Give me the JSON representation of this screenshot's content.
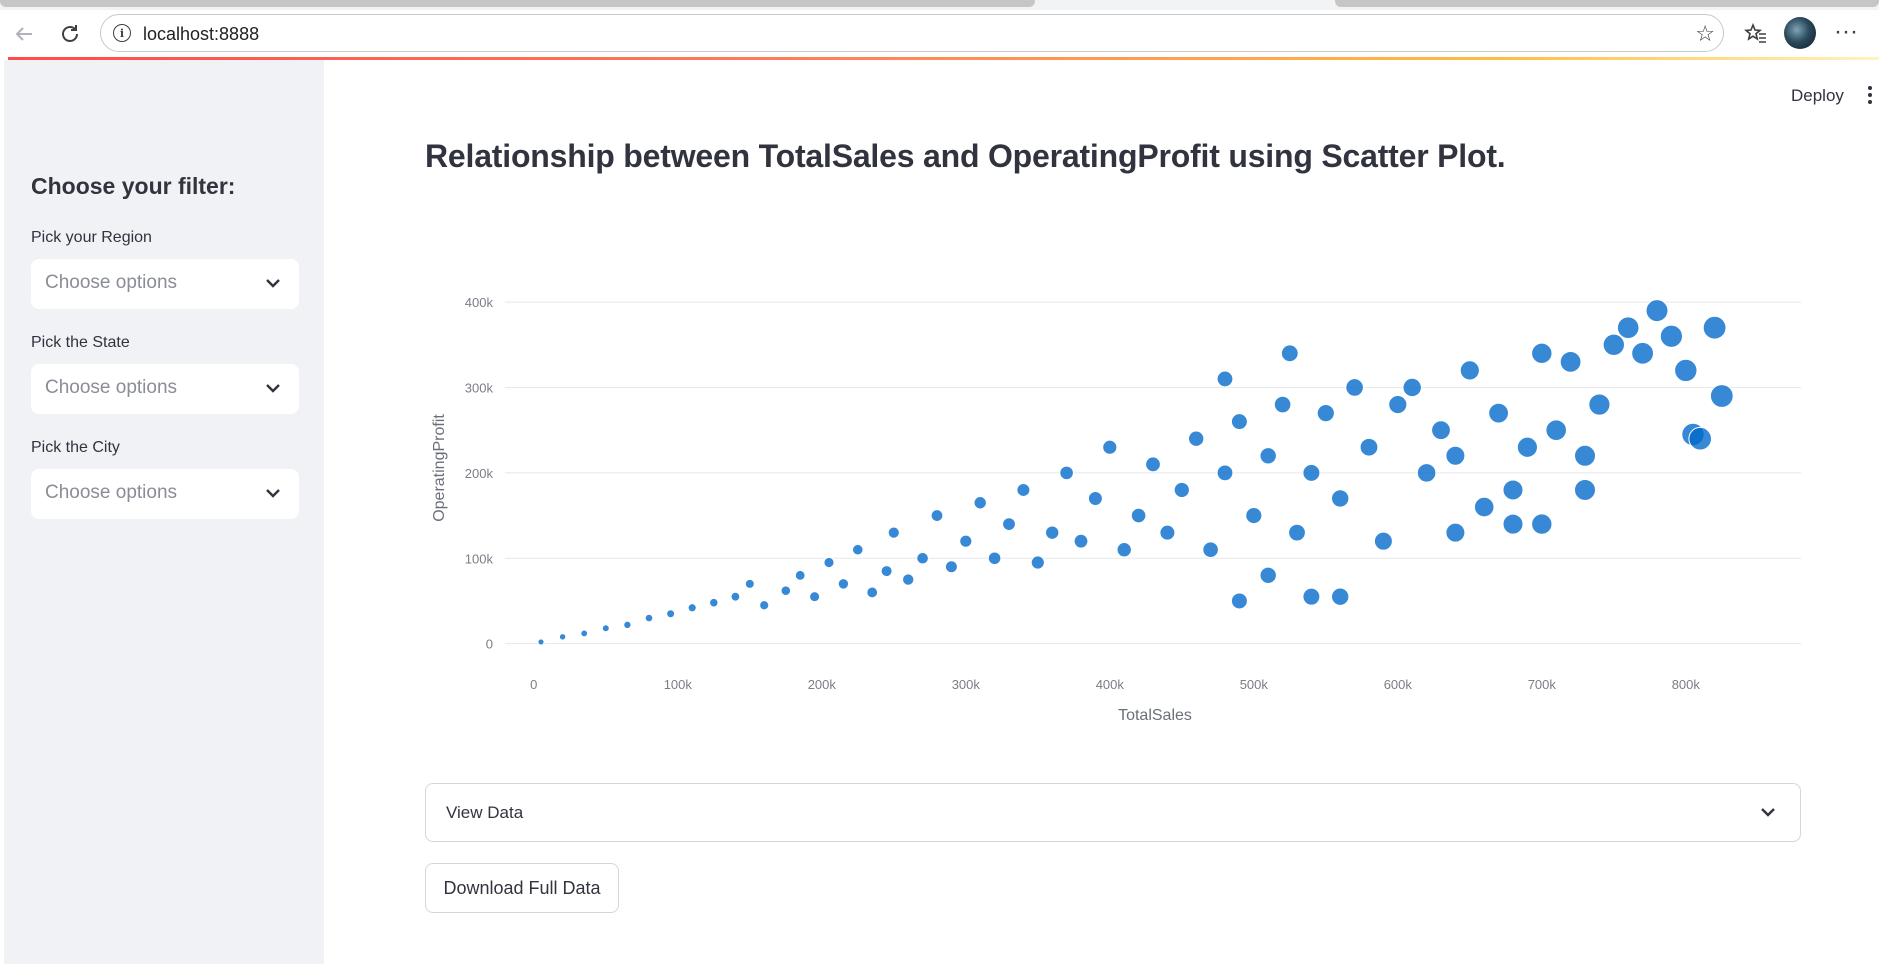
{
  "browser": {
    "url": "localhost:8888",
    "icons": [
      "back-icon",
      "reload-icon",
      "info-icon",
      "star-icon",
      "favorites-icon",
      "more-icon"
    ]
  },
  "header": {
    "deploy_label": "Deploy"
  },
  "sidebar": {
    "title": "Choose your filter:",
    "filters": [
      {
        "label": "Pick your Region",
        "placeholder": "Choose options"
      },
      {
        "label": "Pick the State",
        "placeholder": "Choose options"
      },
      {
        "label": "Pick the City",
        "placeholder": "Choose options"
      }
    ]
  },
  "main": {
    "title": "Relationship between TotalSales and OperatingProfit using Scatter Plot.",
    "expander_label": "View Data",
    "download_label": "Download Full Data"
  },
  "colors": {
    "point": "#0068c9",
    "accent": "#ff4b4b",
    "sidebar": "#f0f2f6"
  },
  "chart_data": {
    "type": "scatter",
    "xlabel": "TotalSales",
    "ylabel": "OperatingProfit",
    "xlim": [
      -20000,
      880000
    ],
    "ylim": [
      -25000,
      420000
    ],
    "xticks": [
      0,
      100000,
      200000,
      300000,
      400000,
      500000,
      600000,
      700000,
      800000
    ],
    "xtick_labels": [
      "0",
      "100k",
      "200k",
      "300k",
      "400k",
      "500k",
      "600k",
      "700k",
      "800k"
    ],
    "yticks": [
      0,
      100000,
      200000,
      300000,
      400000
    ],
    "ytick_labels": [
      "0",
      "100k",
      "200k",
      "300k",
      "400k"
    ],
    "grid": true,
    "legend": "none",
    "points": [
      [
        5000,
        2000
      ],
      [
        20000,
        8000
      ],
      [
        35000,
        12000
      ],
      [
        50000,
        18000
      ],
      [
        65000,
        22000
      ],
      [
        80000,
        30000
      ],
      [
        95000,
        35000
      ],
      [
        110000,
        42000
      ],
      [
        125000,
        48000
      ],
      [
        140000,
        55000
      ],
      [
        150000,
        70000
      ],
      [
        160000,
        45000
      ],
      [
        175000,
        62000
      ],
      [
        185000,
        80000
      ],
      [
        195000,
        55000
      ],
      [
        205000,
        95000
      ],
      [
        215000,
        70000
      ],
      [
        225000,
        110000
      ],
      [
        235000,
        60000
      ],
      [
        245000,
        85000
      ],
      [
        250000,
        130000
      ],
      [
        260000,
        75000
      ],
      [
        270000,
        100000
      ],
      [
        280000,
        150000
      ],
      [
        290000,
        90000
      ],
      [
        300000,
        120000
      ],
      [
        310000,
        165000
      ],
      [
        320000,
        100000
      ],
      [
        330000,
        140000
      ],
      [
        340000,
        180000
      ],
      [
        350000,
        95000
      ],
      [
        360000,
        130000
      ],
      [
        370000,
        200000
      ],
      [
        380000,
        120000
      ],
      [
        390000,
        170000
      ],
      [
        400000,
        230000
      ],
      [
        410000,
        110000
      ],
      [
        420000,
        150000
      ],
      [
        430000,
        210000
      ],
      [
        440000,
        130000
      ],
      [
        450000,
        180000
      ],
      [
        460000,
        240000
      ],
      [
        470000,
        110000
      ],
      [
        480000,
        200000
      ],
      [
        490000,
        260000
      ],
      [
        500000,
        150000
      ],
      [
        510000,
        220000
      ],
      [
        520000,
        280000
      ],
      [
        530000,
        130000
      ],
      [
        540000,
        200000
      ],
      [
        550000,
        270000
      ],
      [
        560000,
        170000
      ],
      [
        570000,
        300000
      ],
      [
        580000,
        230000
      ],
      [
        590000,
        120000
      ],
      [
        600000,
        280000
      ],
      [
        610000,
        300000
      ],
      [
        620000,
        200000
      ],
      [
        630000,
        250000
      ],
      [
        640000,
        220000
      ],
      [
        650000,
        320000
      ],
      [
        660000,
        160000
      ],
      [
        670000,
        270000
      ],
      [
        680000,
        140000
      ],
      [
        690000,
        230000
      ],
      [
        700000,
        340000
      ],
      [
        710000,
        250000
      ],
      [
        720000,
        330000
      ],
      [
        730000,
        180000
      ],
      [
        740000,
        280000
      ],
      [
        750000,
        350000
      ],
      [
        760000,
        370000
      ],
      [
        770000,
        340000
      ],
      [
        780000,
        390000
      ],
      [
        790000,
        360000
      ],
      [
        800000,
        320000
      ],
      [
        805000,
        245000
      ],
      [
        810000,
        240000
      ],
      [
        820000,
        370000
      ],
      [
        825000,
        290000
      ],
      [
        525000,
        340000
      ],
      [
        480000,
        310000
      ],
      [
        510000,
        80000
      ],
      [
        540000,
        55000
      ],
      [
        560000,
        55000
      ],
      [
        490000,
        50000
      ],
      [
        730000,
        220000
      ],
      [
        680000,
        180000
      ],
      [
        700000,
        140000
      ],
      [
        640000,
        130000
      ]
    ]
  }
}
